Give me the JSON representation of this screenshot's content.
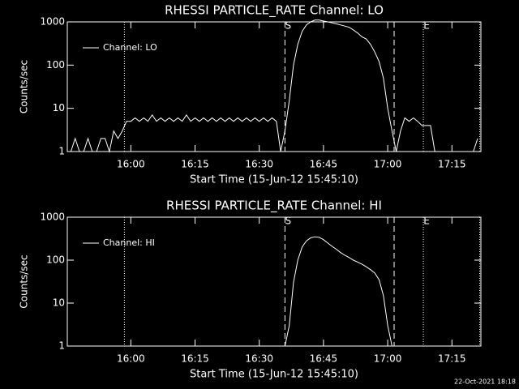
{
  "chart_data": [
    {
      "type": "line",
      "title": "RHESSI PARTICLE_RATE Channel: LO",
      "x_label": "Start Time (15-Jun-12 15:45:10)",
      "y_label": "Counts/sec",
      "log_y": true,
      "ylim": [
        1,
        1000
      ],
      "yticks": [
        1,
        10,
        100,
        1000
      ],
      "xlim": [
        "15:45:10",
        "17:21:46"
      ],
      "xticks": [
        "16:00",
        "16:15",
        "16:30",
        "16:45",
        "17:00",
        "17:15"
      ],
      "legend": "top-left",
      "markers": [
        {
          "x": "15:58:30",
          "style": "dotted"
        },
        {
          "x": "16:36",
          "style": "dashed",
          "label": "S"
        },
        {
          "x": "17:01:30",
          "style": "dashed"
        },
        {
          "x": "17:08:20",
          "style": "dotted",
          "label": "E"
        },
        {
          "x": "17:21:30",
          "style": "dotted"
        }
      ],
      "x": [
        "15:46",
        "15:47",
        "15:48",
        "15:49",
        "15:50",
        "15:51",
        "15:52",
        "15:53",
        "15:54",
        "15:55",
        "15:56",
        "15:57",
        "15:58",
        "15:59",
        "16:00",
        "16:01",
        "16:02",
        "16:03",
        "16:04",
        "16:05",
        "16:06",
        "16:07",
        "16:08",
        "16:09",
        "16:10",
        "16:11",
        "16:12",
        "16:13",
        "16:14",
        "16:15",
        "16:16",
        "16:17",
        "16:18",
        "16:19",
        "16:20",
        "16:21",
        "16:22",
        "16:23",
        "16:24",
        "16:25",
        "16:26",
        "16:27",
        "16:28",
        "16:29",
        "16:30",
        "16:31",
        "16:32",
        "16:33",
        "16:34",
        "16:35",
        "16:36",
        "16:37",
        "16:38",
        "16:39",
        "16:40",
        "16:41",
        "16:42",
        "16:43",
        "16:44",
        "16:45",
        "16:46",
        "16:47",
        "16:48",
        "16:49",
        "16:50",
        "16:51",
        "16:52",
        "16:53",
        "16:54",
        "16:55",
        "16:56",
        "16:57",
        "16:58",
        "16:59",
        "17:00",
        "17:01",
        "17:02",
        "17:03",
        "17:04",
        "17:05",
        "17:06",
        "17:07",
        "17:08",
        "17:09",
        "17:10",
        "17:11",
        "17:12",
        "17:13",
        "17:14",
        "17:15",
        "17:16",
        "17:17",
        "17:18",
        "17:19",
        "17:20",
        "17:21"
      ],
      "series": [
        {
          "name": "Channel: LO",
          "color": "#ffffff",
          "values": [
            1,
            2,
            1,
            1,
            2,
            1,
            1,
            2,
            2,
            1,
            3,
            2,
            3,
            5,
            5,
            6,
            5,
            6,
            5,
            7,
            5,
            6,
            5,
            6,
            5,
            6,
            5,
            7,
            5,
            6,
            5,
            6,
            5,
            6,
            5,
            6,
            5,
            6,
            5,
            6,
            5,
            6,
            5,
            6,
            5,
            6,
            5,
            6,
            5,
            1,
            3,
            15,
            100,
            300,
            600,
            850,
            1000,
            1100,
            1100,
            1050,
            1000,
            950,
            900,
            850,
            800,
            750,
            650,
            550,
            450,
            400,
            300,
            200,
            120,
            50,
            10,
            3,
            1,
            3,
            6,
            5,
            6,
            5,
            4,
            4,
            4,
            1,
            null,
            null,
            null,
            null,
            null,
            null,
            null,
            null,
            1,
            2
          ]
        }
      ]
    },
    {
      "type": "line",
      "title": "RHESSI PARTICLE_RATE Channel: HI",
      "x_label": "Start Time (15-Jun-12 15:45:10)",
      "y_label": "Counts/sec",
      "log_y": true,
      "ylim": [
        1,
        1000
      ],
      "yticks": [
        1,
        10,
        100,
        1000
      ],
      "xlim": [
        "15:45:10",
        "17:21:46"
      ],
      "xticks": [
        "16:00",
        "16:15",
        "16:30",
        "16:45",
        "17:00",
        "17:15"
      ],
      "legend": "top-left",
      "markers": [
        {
          "x": "15:58:30",
          "style": "dotted"
        },
        {
          "x": "16:36",
          "style": "dashed",
          "label": "S"
        },
        {
          "x": "17:01:30",
          "style": "dashed"
        },
        {
          "x": "17:08:20",
          "style": "dotted",
          "label": "E"
        },
        {
          "x": "17:21:30",
          "style": "dotted"
        }
      ],
      "x": [
        "16:36",
        "16:37",
        "16:38",
        "16:39",
        "16:40",
        "16:41",
        "16:42",
        "16:43",
        "16:44",
        "16:45",
        "16:46",
        "16:47",
        "16:48",
        "16:49",
        "16:50",
        "16:51",
        "16:52",
        "16:53",
        "16:54",
        "16:55",
        "16:56",
        "16:57",
        "16:58",
        "16:59",
        "17:00",
        "17:01"
      ],
      "series": [
        {
          "name": "Channel: HI",
          "color": "#ffffff",
          "values": [
            1,
            3,
            30,
            100,
            200,
            280,
            330,
            350,
            340,
            300,
            250,
            210,
            180,
            150,
            130,
            115,
            100,
            90,
            80,
            70,
            60,
            50,
            35,
            15,
            3,
            1
          ]
        }
      ]
    }
  ],
  "footer": "22-Oct-2021 18:18"
}
